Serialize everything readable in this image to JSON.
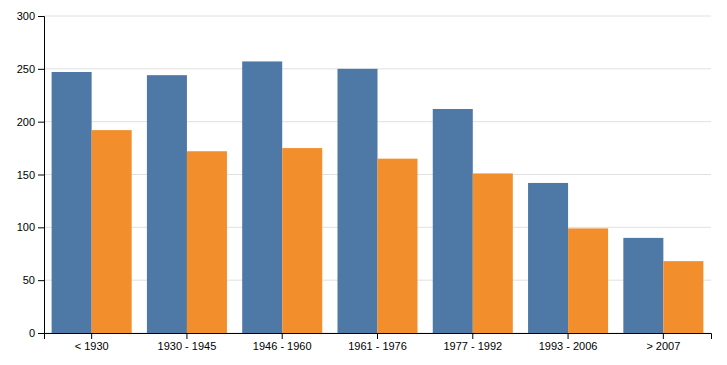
{
  "chart_data": {
    "type": "bar",
    "categories": [
      "< 1930",
      "1930 - 1945",
      "1946 - 1960",
      "1961 - 1976",
      "1977 - 1992",
      "1993 - 2006",
      "> 2007"
    ],
    "series": [
      {
        "values": [
          247,
          244,
          257,
          250,
          212,
          142,
          90
        ]
      },
      {
        "values": [
          192,
          172,
          175,
          165,
          151,
          99,
          68
        ]
      }
    ],
    "ylim": [
      0,
      300
    ],
    "yticks": [
      0,
      50,
      100,
      150,
      200,
      250,
      300
    ],
    "grid": true
  }
}
